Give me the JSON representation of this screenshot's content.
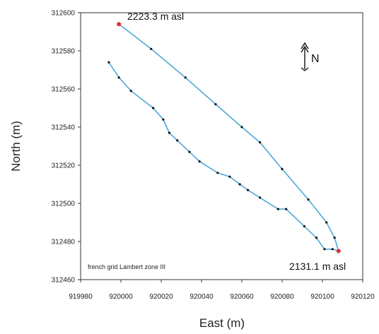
{
  "chart_data": {
    "type": "line",
    "title": "",
    "xlabel": "East (m)",
    "ylabel": "North (m)",
    "xlim": [
      919980,
      920120
    ],
    "ylim": [
      312460,
      312600
    ],
    "xticks": [
      "919980",
      "920000",
      "920020",
      "920040",
      "920060",
      "920080",
      "920100",
      "920120"
    ],
    "yticks": [
      "312460",
      "312480",
      "312500",
      "312520",
      "312540",
      "312560",
      "312580",
      "312600"
    ],
    "grid": false,
    "line_color": "#4ea9d8",
    "marker_color": "#111111",
    "endpoint_color": "#e03030",
    "series": [
      {
        "points": [
          [
            919999,
            312594
          ],
          [
            920015,
            312581
          ],
          [
            920032,
            312566
          ],
          [
            920047,
            312552
          ],
          [
            920060,
            312540
          ],
          [
            920069,
            312532
          ],
          [
            920080,
            312518
          ],
          [
            920093,
            312502
          ],
          [
            920102,
            312490
          ],
          [
            920106,
            312482
          ],
          [
            920108,
            312475
          ],
          [
            920105,
            312476
          ],
          [
            920101,
            312476
          ],
          [
            920097,
            312482
          ],
          [
            920091,
            312488
          ],
          [
            920082,
            312497
          ],
          [
            920078,
            312497
          ],
          [
            920069,
            312503
          ],
          [
            920063,
            312507
          ],
          [
            920059,
            312510
          ],
          [
            920054,
            312514
          ],
          [
            920048,
            312516
          ],
          [
            920039,
            312522
          ],
          [
            920034,
            312527
          ],
          [
            920028,
            312533
          ],
          [
            920024,
            312537
          ],
          [
            920021,
            312544
          ],
          [
            920016,
            312550
          ],
          [
            920005,
            312559
          ],
          [
            919999,
            312566
          ],
          [
            919994,
            312574
          ]
        ]
      }
    ],
    "endpoints": [
      {
        "x": 919999,
        "y": 312594,
        "label": "2223.3 m asl"
      },
      {
        "x": 920108,
        "y": 312475,
        "label": "2131.1 m asl"
      }
    ],
    "north_label": "N",
    "grid_note": "french grid Lambert zone  III"
  }
}
